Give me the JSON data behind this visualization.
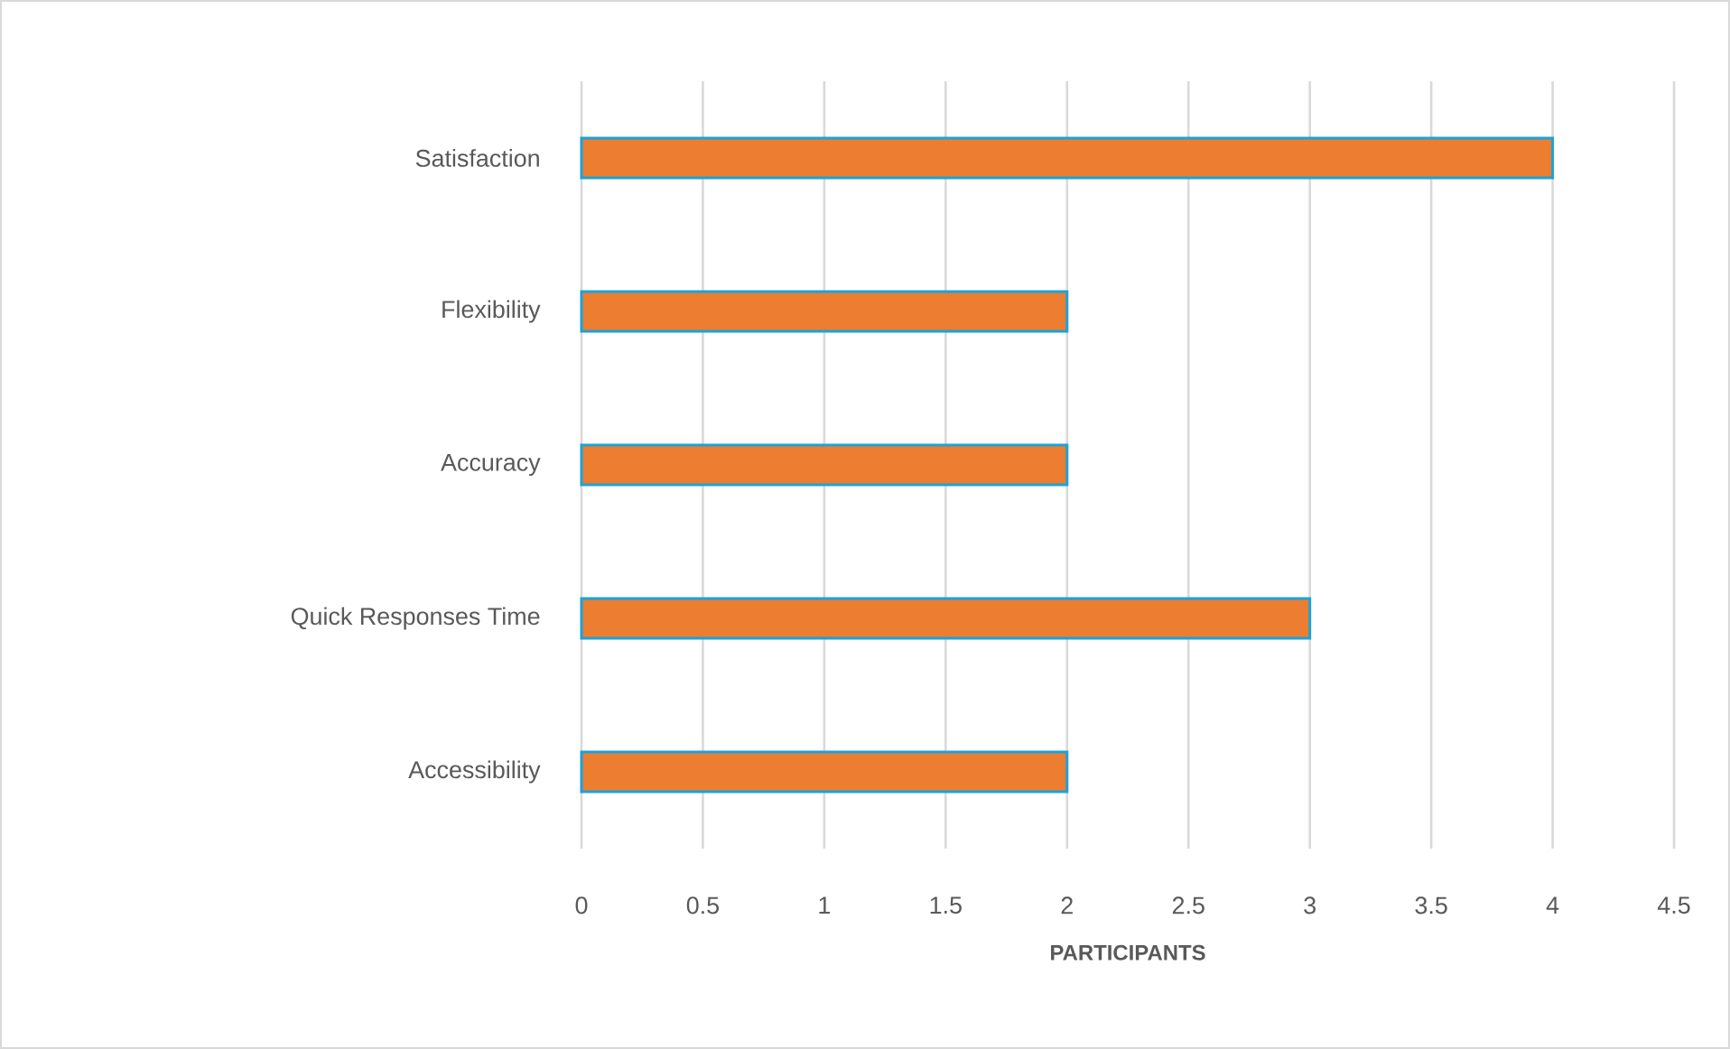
{
  "chart_data": {
    "type": "bar",
    "orientation": "horizontal",
    "xlabel": "PARTICIPANTS",
    "categories": [
      "Satisfaction",
      "Flexibility",
      "Accuracy",
      "Quick Responses Time",
      "Accessibility"
    ],
    "values": [
      4,
      2,
      2,
      3,
      2
    ],
    "color": "#ed7d31",
    "xlim": [
      0,
      4.5
    ],
    "xticks": [
      0,
      0.5,
      1,
      1.5,
      2,
      2.5,
      3,
      3.5,
      4,
      4.5
    ],
    "grid": "x"
  }
}
